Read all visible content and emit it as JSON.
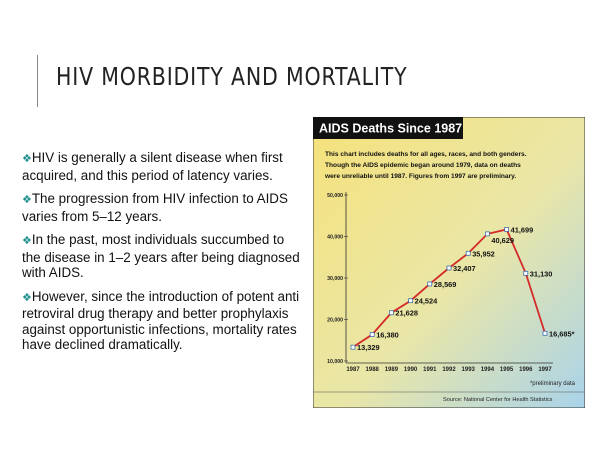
{
  "title": "HIV MORBIDITY AND MORTALITY",
  "bullets": [
    "HIV is generally a silent disease when first acquired, and this period of latency varies.",
    "The progression from HIV infection to AIDS varies from 5–12 years.",
    "In the past, most individuals succumbed to the disease in 1–2 years after being diagnosed with AIDS.",
    "However, since the introduction of potent anti retroviral drug therapy and better prophylaxis against opportunistic infections, mortality rates have declined dramatically."
  ],
  "chart_data": {
    "type": "line",
    "title": "AIDS Deaths Since 1987",
    "description": [
      "This chart includes deaths for all ages, races, and both genders.",
      "Though the AIDS epidemic began around 1979, data on deaths",
      "were unreliable until 1987. Figures from 1997 are preliminary."
    ],
    "categories": [
      "1987",
      "1988",
      "1989",
      "1990",
      "1991",
      "1992",
      "1993",
      "1994",
      "1995",
      "1996",
      "1997"
    ],
    "values": [
      13329,
      16380,
      21628,
      24524,
      28569,
      32407,
      35952,
      40629,
      41699,
      31130,
      16685
    ],
    "value_labels": [
      "13,329",
      "16,380",
      "21,628",
      "24,524",
      "28,569",
      "32,407",
      "35,952",
      "40,629",
      "41,699",
      "31,130",
      "16,685*"
    ],
    "color": "#d42a2a",
    "ylim": [
      10000,
      50000
    ],
    "yticks": [
      {
        "value": 10000,
        "label": "10,000"
      },
      {
        "value": 20000,
        "label": "20,000"
      },
      {
        "value": 30000,
        "label": "30,000"
      },
      {
        "value": 40000,
        "label": "40,000"
      },
      {
        "value": 50000,
        "label": "50,000"
      }
    ],
    "grid": false,
    "footnote": "*preliminary data",
    "source": "Source:  National Center for Health Statistics"
  }
}
